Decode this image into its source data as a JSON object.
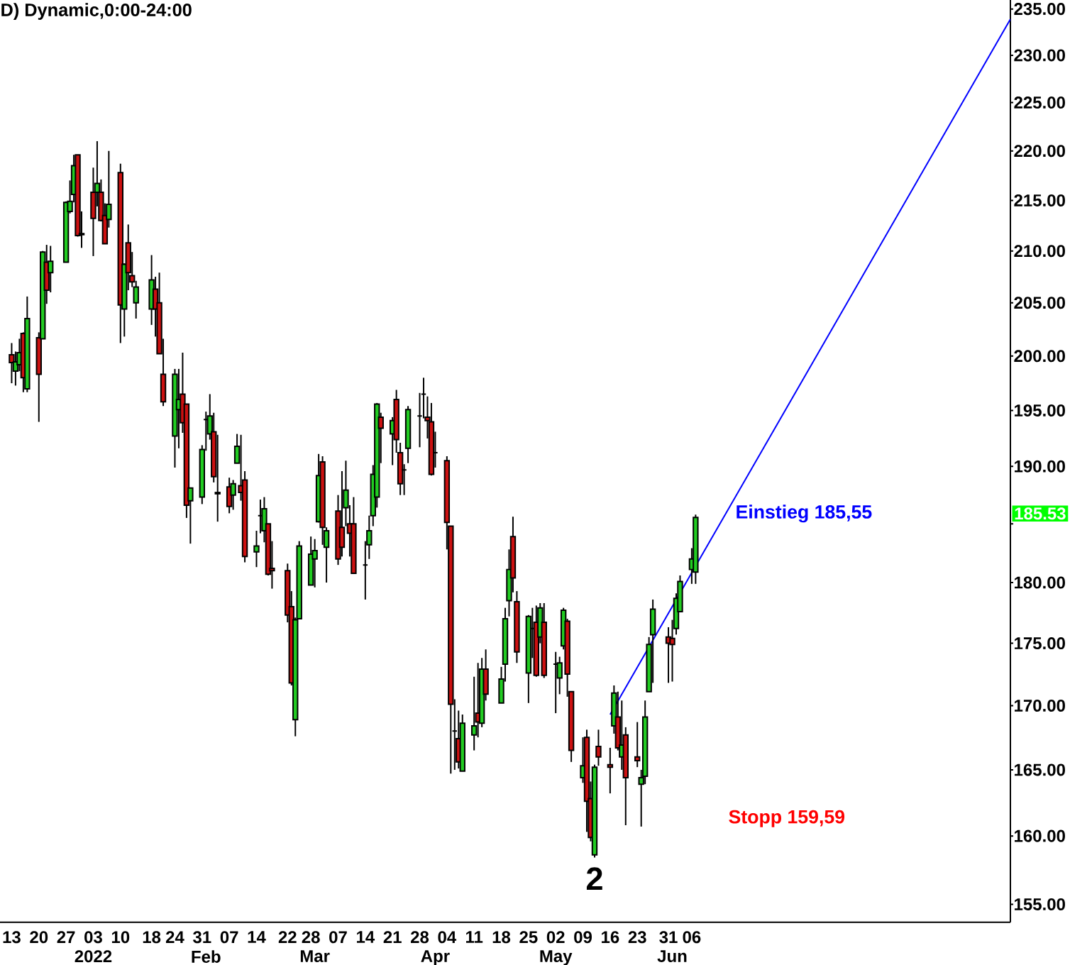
{
  "chart_data": {
    "type": "candlestick",
    "title": "D) Dynamic,0:00-24:00",
    "x": [
      "2021-12-13",
      "2021-12-14",
      "2021-12-15",
      "2021-12-16",
      "2021-12-17",
      "2021-12-20",
      "2021-12-21",
      "2021-12-22",
      "2021-12-23",
      "2021-12-27",
      "2021-12-28",
      "2021-12-29",
      "2021-12-30",
      "2021-12-31",
      "2022-01-03",
      "2022-01-04",
      "2022-01-05",
      "2022-01-06",
      "2022-01-07",
      "2022-01-10",
      "2022-01-11",
      "2022-01-12",
      "2022-01-13",
      "2022-01-14",
      "2022-01-18",
      "2022-01-19",
      "2022-01-20",
      "2022-01-21",
      "2022-01-24",
      "2022-01-25",
      "2022-01-26",
      "2022-01-27",
      "2022-01-28",
      "2022-01-31",
      "2022-02-01",
      "2022-02-02",
      "2022-02-03",
      "2022-02-04",
      "2022-02-07",
      "2022-02-08",
      "2022-02-09",
      "2022-02-10",
      "2022-02-11",
      "2022-02-14",
      "2022-02-15",
      "2022-02-16",
      "2022-02-17",
      "2022-02-18",
      "2022-02-22",
      "2022-02-23",
      "2022-02-24",
      "2022-02-25",
      "2022-02-28",
      "2022-03-01",
      "2022-03-02",
      "2022-03-03",
      "2022-03-04",
      "2022-03-07",
      "2022-03-08",
      "2022-03-09",
      "2022-03-10",
      "2022-03-11",
      "2022-03-14",
      "2022-03-15",
      "2022-03-16",
      "2022-03-17",
      "2022-03-18",
      "2022-03-21",
      "2022-03-22",
      "2022-03-23",
      "2022-03-24",
      "2022-03-25",
      "2022-03-28",
      "2022-03-29",
      "2022-03-30",
      "2022-03-31",
      "2022-04-01",
      "2022-04-04",
      "2022-04-05",
      "2022-04-06",
      "2022-04-07",
      "2022-04-08",
      "2022-04-11",
      "2022-04-12",
      "2022-04-13",
      "2022-04-14",
      "2022-04-18",
      "2022-04-19",
      "2022-04-20",
      "2022-04-21",
      "2022-04-22",
      "2022-04-25",
      "2022-04-26",
      "2022-04-27",
      "2022-04-28",
      "2022-04-29",
      "2022-05-02",
      "2022-05-03",
      "2022-05-04",
      "2022-05-05",
      "2022-05-06",
      "2022-05-09",
      "2022-05-10",
      "2022-05-11",
      "2022-05-12",
      "2022-05-13",
      "2022-05-16",
      "2022-05-17",
      "2022-05-18",
      "2022-05-19",
      "2022-05-20",
      "2022-05-23",
      "2022-05-24",
      "2022-05-25",
      "2022-05-26",
      "2022-05-27",
      "2022-05-31",
      "2022-06-01",
      "2022-06-02",
      "2022-06-03",
      "2022-06-06",
      "2022-06-07"
    ],
    "ohlc": [
      [
        200.1,
        201.2,
        197.5,
        199.4
      ],
      [
        198.6,
        200.4,
        197.3,
        199.5
      ],
      [
        199.2,
        201.6,
        198.6,
        200.3
      ],
      [
        202.1,
        202.2,
        196.7,
        198.0
      ],
      [
        197.0,
        205.6,
        196.7,
        203.5
      ],
      [
        201.7,
        202.2,
        194.0,
        198.3
      ],
      [
        201.6,
        210.0,
        201.6,
        209.9
      ],
      [
        208.9,
        210.6,
        204.9,
        206.2
      ],
      [
        207.9,
        210.5,
        206.0,
        209.0
      ],
      [
        208.9,
        214.9,
        208.9,
        214.8
      ],
      [
        213.9,
        217.0,
        213.7,
        214.9
      ],
      [
        215.6,
        219.6,
        214.8,
        218.5
      ],
      [
        219.6,
        219.6,
        211.4,
        211.5
      ],
      [
        211.7,
        213.9,
        210.3,
        211.6
      ],
      [
        215.8,
        218.3,
        209.5,
        213.2
      ],
      [
        215.8,
        221.0,
        214.4,
        216.7
      ],
      [
        215.8,
        217.1,
        212.9,
        213.0
      ],
      [
        213.5,
        214.7,
        210.7,
        210.7
      ],
      [
        213.1,
        220.0,
        212.3,
        214.6
      ],
      [
        217.8,
        218.7,
        201.2,
        204.8
      ],
      [
        204.4,
        208.8,
        201.8,
        208.7
      ],
      [
        210.8,
        212.6,
        206.2,
        207.9
      ],
      [
        207.6,
        209.9,
        206.5,
        207.0
      ],
      [
        205.0,
        207.1,
        203.5,
        206.5
      ],
      [
        204.4,
        209.6,
        202.9,
        207.2
      ],
      [
        206.3,
        207.5,
        201.8,
        204.4
      ],
      [
        205.0,
        207.9,
        200.2,
        200.2
      ],
      [
        198.3,
        201.6,
        195.4,
        195.8
      ],
      [
        192.7,
        198.8,
        189.9,
        198.3
      ],
      [
        195.1,
        198.8,
        191.6,
        196.0
      ],
      [
        196.5,
        200.3,
        193.0,
        193.9
      ],
      [
        195.6,
        195.6,
        185.5,
        186.6
      ],
      [
        187.0,
        188.1,
        183.3,
        188.1
      ],
      [
        187.3,
        191.9,
        186.7,
        191.5
      ],
      [
        194.2,
        194.9,
        191.4,
        194.2
      ],
      [
        192.9,
        196.5,
        192.4,
        194.5
      ],
      [
        193.1,
        194.8,
        188.6,
        189.1
      ],
      [
        187.7,
        192.8,
        185.2,
        187.6
      ],
      [
        188.2,
        189.0,
        185.9,
        186.5
      ],
      [
        187.5,
        188.8,
        186.2,
        188.5
      ],
      [
        190.3,
        192.9,
        190.3,
        191.8
      ],
      [
        188.3,
        192.8,
        187.0,
        187.7
      ],
      [
        188.8,
        189.6,
        181.7,
        182.2
      ],
      [
        182.6,
        184.4,
        181.3,
        183.1
      ],
      [
        185.7,
        187.1,
        184.2,
        185.7
      ],
      [
        184.4,
        187.3,
        183.4,
        186.3
      ],
      [
        185.0,
        185.0,
        180.6,
        180.7
      ],
      [
        181.2,
        183.5,
        179.5,
        181.0
      ],
      [
        181.0,
        181.6,
        176.7,
        177.3
      ],
      [
        178.0,
        179.3,
        171.6,
        171.8
      ],
      [
        168.9,
        177.1,
        167.6,
        176.9
      ],
      [
        177.0,
        183.5,
        177.0,
        183.1
      ],
      [
        179.8,
        183.9,
        179.8,
        182.4
      ],
      [
        182.0,
        183.7,
        179.6,
        182.7
      ],
      [
        185.2,
        191.1,
        185.1,
        189.2
      ],
      [
        190.4,
        190.9,
        183.2,
        184.7
      ],
      [
        183.0,
        184.7,
        180.0,
        184.4
      ],
      [
        186.1,
        187.5,
        181.5,
        182.0
      ],
      [
        184.7,
        189.6,
        182.2,
        183.0
      ],
      [
        186.4,
        190.5,
        184.8,
        187.9
      ],
      [
        185.0,
        186.6,
        182.2,
        184.2
      ],
      [
        185.0,
        187.3,
        180.8,
        180.8
      ],
      [
        181.5,
        183.5,
        178.6,
        181.5
      ],
      [
        183.2,
        185.7,
        182.0,
        184.4
      ],
      [
        185.7,
        190.1,
        184.8,
        189.3
      ],
      [
        187.3,
        195.7,
        186.4,
        195.6
      ],
      [
        194.4,
        194.8,
        190.3,
        193.4
      ],
      [
        192.9,
        194.4,
        190.1,
        194.1
      ],
      [
        196.0,
        196.9,
        191.2,
        192.4
      ],
      [
        191.2,
        192.1,
        187.5,
        188.5
      ],
      [
        189.7,
        190.2,
        187.5,
        189.7
      ],
      [
        191.6,
        195.4,
        190.3,
        195.1
      ],
      [
        194.5,
        196.6,
        191.7,
        194.5
      ],
      [
        196.5,
        198.0,
        194.3,
        196.5
      ],
      [
        194.4,
        196.3,
        192.5,
        194.1
      ],
      [
        194.0,
        195.7,
        189.2,
        189.3
      ],
      [
        191.2,
        193.1,
        189.9,
        191.2
      ],
      [
        190.5,
        190.9,
        182.8,
        185.1
      ],
      [
        184.8,
        184.8,
        164.7,
        170.1
      ],
      [
        168.0,
        170.5,
        165.0,
        168.0
      ],
      [
        167.4,
        169.6,
        165.1,
        165.6
      ],
      [
        164.9,
        169.3,
        164.9,
        168.6
      ],
      [
        167.7,
        172.3,
        166.5,
        168.4
      ],
      [
        169.4,
        173.4,
        167.5,
        168.7
      ],
      [
        168.6,
        173.8,
        168.3,
        172.9
      ],
      [
        172.9,
        174.5,
        170.4,
        170.9
      ],
      [
        170.2,
        173.1,
        170.2,
        172.1
      ],
      [
        173.3,
        177.9,
        171.9,
        177.0
      ],
      [
        178.5,
        182.8,
        177.2,
        181.1
      ],
      [
        183.9,
        185.6,
        179.2,
        180.4
      ],
      [
        178.4,
        179.3,
        173.4,
        174.3
      ],
      [
        172.6,
        177.3,
        170.2,
        177.2
      ],
      [
        176.2,
        177.9,
        173.8,
        176.2
      ],
      [
        176.7,
        178.1,
        172.3,
        172.4
      ],
      [
        175.5,
        178.3,
        175.0,
        177.9
      ],
      [
        176.7,
        178.3,
        172.2,
        172.4
      ],
      [
        173.3,
        174.3,
        169.4,
        173.3
      ],
      [
        172.2,
        173.9,
        170.9,
        173.4
      ],
      [
        174.8,
        177.9,
        174.5,
        177.7
      ],
      [
        176.8,
        177.0,
        170.7,
        172.5
      ],
      [
        171.1,
        171.1,
        165.6,
        166.5
      ],
      [
        164.4,
        167.5,
        164.0,
        165.3
      ],
      [
        167.5,
        168.1,
        160.3,
        162.6
      ],
      [
        162.8,
        164.1,
        159.6,
        159.9
      ],
      [
        158.6,
        165.4,
        158.4,
        165.2
      ],
      [
        166.8,
        168.1,
        165.3,
        166.0
      ],
      [
        165.4,
        166.7,
        163.2,
        165.2
      ],
      [
        168.4,
        171.6,
        167.8,
        171.0
      ],
      [
        169.1,
        171.1,
        166.5,
        166.7
      ],
      [
        166.0,
        170.4,
        165.0,
        166.9
      ],
      [
        167.7,
        168.3,
        160.8,
        164.4
      ],
      [
        166.0,
        168.7,
        165.2,
        165.7
      ],
      [
        163.9,
        165.0,
        160.7,
        164.4
      ],
      [
        164.5,
        170.4,
        163.9,
        169.1
      ],
      [
        171.1,
        175.5,
        171.1,
        174.9
      ],
      [
        175.7,
        178.6,
        171.8,
        177.8
      ],
      [
        175.5,
        176.3,
        171.8,
        175.0
      ],
      [
        175.4,
        176.9,
        171.9,
        174.9
      ],
      [
        176.2,
        179.1,
        175.7,
        178.7
      ],
      [
        177.6,
        180.6,
        177.6,
        180.1
      ],
      [
        181.1,
        182.9,
        179.9,
        182.0
      ],
      [
        180.9,
        185.8,
        179.9,
        185.53
      ]
    ],
    "colors": [
      "#cc1111",
      "#22cc22",
      "#22cc22",
      "#cc1111",
      "#22cc22",
      "#cc1111",
      "#22cc22",
      "#cc1111",
      "#22cc22",
      "#22cc22",
      "#22cc22",
      "#22cc22",
      "#cc1111",
      "#cc1111",
      "#cc1111",
      "#22cc22",
      "#cc1111",
      "#cc1111",
      "#22cc22",
      "#cc1111",
      "#22cc22",
      "#cc1111",
      "#cc1111",
      "#22cc22",
      "#22cc22",
      "#cc1111",
      "#cc1111",
      "#cc1111",
      "#22cc22",
      "#22cc22",
      "#cc1111",
      "#cc1111",
      "#22cc22",
      "#22cc22",
      "#000000",
      "#22cc22",
      "#cc1111",
      "#cc1111",
      "#cc1111",
      "#22cc22",
      "#22cc22",
      "#cc1111",
      "#cc1111",
      "#22cc22",
      "#000000",
      "#22cc22",
      "#cc1111",
      "#cc1111",
      "#cc1111",
      "#cc1111",
      "#22cc22",
      "#22cc22",
      "#22cc22",
      "#22cc22",
      "#22cc22",
      "#cc1111",
      "#22cc22",
      "#cc1111",
      "#cc1111",
      "#22cc22",
      "#cc1111",
      "#cc1111",
      "#000000",
      "#22cc22",
      "#22cc22",
      "#22cc22",
      "#cc1111",
      "#22cc22",
      "#cc1111",
      "#cc1111",
      "#000000",
      "#22cc22",
      "#000000",
      "#000000",
      "#cc1111",
      "#cc1111",
      "#000000",
      "#cc1111",
      "#cc1111",
      "#000000",
      "#cc1111",
      "#22cc22",
      "#22cc22",
      "#cc1111",
      "#22cc22",
      "#cc1111",
      "#22cc22",
      "#22cc22",
      "#22cc22",
      "#cc1111",
      "#cc1111",
      "#22cc22",
      "#000000",
      "#cc1111",
      "#22cc22",
      "#cc1111",
      "#000000",
      "#22cc22",
      "#22cc22",
      "#cc1111",
      "#cc1111",
      "#22cc22",
      "#cc1111",
      "#cc1111",
      "#22cc22",
      "#cc1111",
      "#cc1111",
      "#22cc22",
      "#cc1111",
      "#22cc22",
      "#cc1111",
      "#cc1111",
      "#22cc22",
      "#22cc22",
      "#22cc22",
      "#22cc22",
      "#cc1111",
      "#cc1111",
      "#22cc22",
      "#22cc22",
      "#22cc22",
      "#22cc22"
    ],
    "series": [
      {
        "type": "line",
        "x": [
          "2022-05-16",
          "2022-08-27"
        ],
        "values": [
          169.3,
          233.9
        ],
        "color": "#0000ff"
      }
    ],
    "log": true,
    "xlim": [
      "2021-12-10",
      "2022-08-27"
    ],
    "xticks": [
      {
        "value": "2021-12-13",
        "label": "13"
      },
      {
        "value": "2021-12-20",
        "label": "20"
      },
      {
        "value": "2021-12-27",
        "label": "27"
      },
      {
        "value": "2022-01-03",
        "label": "03"
      },
      {
        "value": "2022-01-10",
        "label": "10"
      },
      {
        "value": "2022-01-18",
        "label": "18"
      },
      {
        "value": "2022-01-24",
        "label": "24"
      },
      {
        "value": "2022-01-31",
        "label": "31"
      },
      {
        "value": "2022-02-07",
        "label": "07"
      },
      {
        "value": "2022-02-14",
        "label": "14"
      },
      {
        "value": "2022-02-22",
        "label": "22"
      },
      {
        "value": "2022-02-28",
        "label": "28"
      },
      {
        "value": "2022-03-07",
        "label": "07"
      },
      {
        "value": "2022-03-14",
        "label": "14"
      },
      {
        "value": "2022-03-21",
        "label": "21"
      },
      {
        "value": "2022-03-28",
        "label": "28"
      },
      {
        "value": "2022-04-04",
        "label": "04"
      },
      {
        "value": "2022-04-11",
        "label": "11"
      },
      {
        "value": "2022-04-18",
        "label": "18"
      },
      {
        "value": "2022-04-25",
        "label": "25"
      },
      {
        "value": "2022-05-02",
        "label": "02"
      },
      {
        "value": "2022-05-09",
        "label": "09"
      },
      {
        "value": "2022-05-16",
        "label": "16"
      },
      {
        "value": "2022-05-23",
        "label": "23"
      },
      {
        "value": "2022-05-31",
        "label": "31"
      },
      {
        "value": "2022-06-06",
        "label": "06"
      }
    ],
    "x2lim": [
      "2021-12-10",
      "2022-08-27"
    ],
    "x2ticks": [
      {
        "value": "2022-01-03",
        "label": "2022"
      },
      {
        "value": "2022-02-01",
        "label": "Feb"
      },
      {
        "value": "2022-03-01",
        "label": "Mar"
      },
      {
        "value": "2022-04-01",
        "label": "Apr"
      },
      {
        "value": "2022-05-02",
        "label": "May"
      },
      {
        "value": "2022-06-01",
        "label": "Jun"
      }
    ],
    "ylim": [
      153.7,
      236.0
    ],
    "yticks": [
      {
        "value": 155,
        "label": "155.00"
      },
      {
        "value": 160,
        "label": "160.00"
      },
      {
        "value": 165,
        "label": "165.00"
      },
      {
        "value": 170,
        "label": "170.00"
      },
      {
        "value": 175,
        "label": "175.00"
      },
      {
        "value": 180,
        "label": "180.00"
      },
      {
        "value": 185,
        "label": null
      },
      {
        "value": 190,
        "label": "190.00"
      },
      {
        "value": 195,
        "label": "195.00"
      },
      {
        "value": 200,
        "label": "200.00"
      },
      {
        "value": 205,
        "label": "205.00"
      },
      {
        "value": 210,
        "label": "210.00"
      },
      {
        "value": 215,
        "label": "215.00"
      },
      {
        "value": 220,
        "label": "220.00"
      },
      {
        "value": 225,
        "label": "225.00"
      },
      {
        "value": 230,
        "label": "230.00"
      },
      {
        "value": 235,
        "label": "235.00"
      }
    ],
    "annotations": [
      "Einstieg 185,55",
      "Stopp 159,59",
      {
        "text": "2",
        "x": "2022-05-12",
        "y": 158.4
      },
      "185.53"
    ]
  }
}
